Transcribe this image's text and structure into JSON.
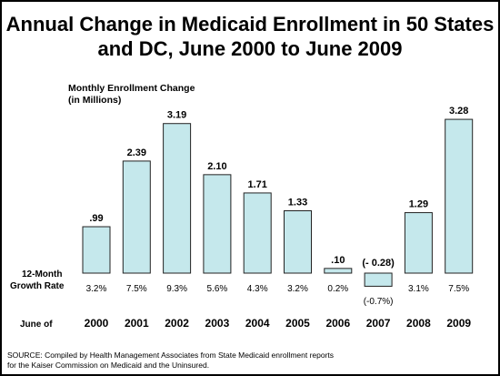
{
  "title_lines": [
    "Annual Change in Medicaid Enrollment in 50 States",
    "and DC, June 2000 to June 2009"
  ],
  "ylabel_lines": [
    "Monthly Enrollment Change",
    "(in Millions)"
  ],
  "row_labels": {
    "growth_lines": [
      "12-Month",
      "Growth Rate"
    ],
    "year": "June of"
  },
  "source_lines": [
    "SOURCE: Compiled by Health Management Associates from State Medicaid enrollment reports",
    "for the Kaiser Commission on Medicaid and the Uninsured."
  ],
  "colors": {
    "bar_fill": "#c5e8ec",
    "bar_stroke": "#222222"
  },
  "chart_data": {
    "type": "bar",
    "title": "Annual Change in Medicaid Enrollment in 50 States and DC, June 2000 to June 2009",
    "ylabel": "Monthly Enrollment Change (in Millions)",
    "xlabel": "June of",
    "categories": [
      "2000",
      "2001",
      "2002",
      "2003",
      "2004",
      "2005",
      "2006",
      "2007",
      "2008",
      "2009"
    ],
    "values": [
      0.99,
      2.39,
      3.19,
      2.1,
      1.71,
      1.33,
      0.1,
      -0.28,
      1.29,
      3.28
    ],
    "value_labels": [
      ".99",
      "2.39",
      "3.19",
      "2.10",
      "1.71",
      "1.33",
      ".10",
      "(- 0.28)",
      "1.29",
      "3.28"
    ],
    "growth_rates": [
      "3.2%",
      "7.5%",
      "9.3%",
      "5.6%",
      "4.3%",
      "3.2%",
      "0.2%",
      "(-0.7%)",
      "3.1%",
      "7.5%"
    ],
    "ylim": [
      -0.3,
      3.3
    ],
    "grid": false,
    "legend": "none"
  }
}
